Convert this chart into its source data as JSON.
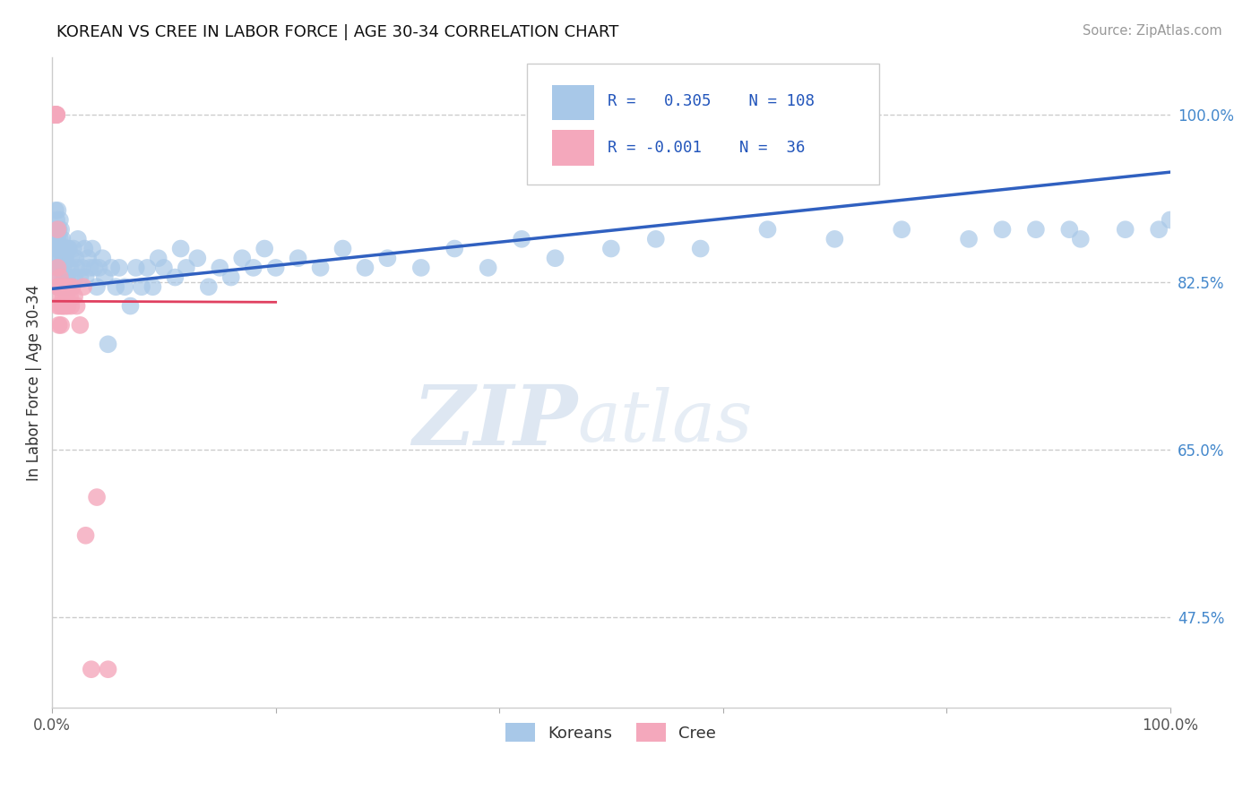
{
  "title": "KOREAN VS CREE IN LABOR FORCE | AGE 30-34 CORRELATION CHART",
  "source": "Source: ZipAtlas.com",
  "ylabel": "In Labor Force | Age 30-34",
  "xlim": [
    0.0,
    1.0
  ],
  "ylim": [
    0.38,
    1.06
  ],
  "yticks": [
    0.475,
    0.65,
    0.825,
    1.0
  ],
  "ytick_labels": [
    "47.5%",
    "65.0%",
    "82.5%",
    "100.0%"
  ],
  "korean_R": 0.305,
  "korean_N": 108,
  "cree_R": -0.001,
  "cree_N": 36,
  "korean_color": "#a8c8e8",
  "cree_color": "#f4a8bc",
  "trend_korean_color": "#3060c0",
  "trend_cree_color": "#e04060",
  "legend_label_korean": "Koreans",
  "legend_label_cree": "Cree",
  "background_color": "#ffffff",
  "korean_trend_x0": 0.0,
  "korean_trend_y0": 0.818,
  "korean_trend_x1": 1.0,
  "korean_trend_y1": 0.94,
  "cree_trend_x0": 0.0,
  "cree_trend_y0": 0.805,
  "cree_trend_x1": 0.2,
  "cree_trend_y1": 0.804,
  "korean_x": [
    0.002,
    0.003,
    0.003,
    0.003,
    0.004,
    0.004,
    0.004,
    0.005,
    0.005,
    0.005,
    0.005,
    0.005,
    0.005,
    0.006,
    0.006,
    0.006,
    0.006,
    0.007,
    0.007,
    0.007,
    0.007,
    0.008,
    0.008,
    0.008,
    0.008,
    0.009,
    0.009,
    0.009,
    0.01,
    0.01,
    0.01,
    0.011,
    0.011,
    0.012,
    0.012,
    0.013,
    0.013,
    0.014,
    0.014,
    0.015,
    0.015,
    0.016,
    0.017,
    0.018,
    0.019,
    0.02,
    0.021,
    0.022,
    0.023,
    0.025,
    0.027,
    0.029,
    0.03,
    0.032,
    0.034,
    0.036,
    0.038,
    0.04,
    0.042,
    0.045,
    0.047,
    0.05,
    0.053,
    0.057,
    0.06,
    0.065,
    0.07,
    0.075,
    0.08,
    0.085,
    0.09,
    0.095,
    0.1,
    0.11,
    0.115,
    0.12,
    0.13,
    0.14,
    0.15,
    0.16,
    0.17,
    0.18,
    0.19,
    0.2,
    0.22,
    0.24,
    0.26,
    0.28,
    0.3,
    0.33,
    0.36,
    0.39,
    0.42,
    0.45,
    0.5,
    0.54,
    0.58,
    0.64,
    0.7,
    0.76,
    0.82,
    0.88,
    0.92,
    0.96,
    0.99,
    1.0,
    0.85,
    0.91
  ],
  "korean_y": [
    0.86,
    0.88,
    0.9,
    0.87,
    0.85,
    0.87,
    0.89,
    0.82,
    0.84,
    0.86,
    0.87,
    0.88,
    0.9,
    0.82,
    0.84,
    0.86,
    0.88,
    0.83,
    0.85,
    0.87,
    0.89,
    0.82,
    0.84,
    0.86,
    0.88,
    0.83,
    0.85,
    0.87,
    0.82,
    0.84,
    0.86,
    0.83,
    0.85,
    0.82,
    0.85,
    0.83,
    0.86,
    0.83,
    0.86,
    0.82,
    0.86,
    0.84,
    0.85,
    0.82,
    0.86,
    0.83,
    0.85,
    0.84,
    0.87,
    0.83,
    0.84,
    0.86,
    0.83,
    0.85,
    0.84,
    0.86,
    0.84,
    0.82,
    0.84,
    0.85,
    0.83,
    0.76,
    0.84,
    0.82,
    0.84,
    0.82,
    0.8,
    0.84,
    0.82,
    0.84,
    0.82,
    0.85,
    0.84,
    0.83,
    0.86,
    0.84,
    0.85,
    0.82,
    0.84,
    0.83,
    0.85,
    0.84,
    0.86,
    0.84,
    0.85,
    0.84,
    0.86,
    0.84,
    0.85,
    0.84,
    0.86,
    0.84,
    0.87,
    0.85,
    0.86,
    0.87,
    0.86,
    0.88,
    0.87,
    0.88,
    0.87,
    0.88,
    0.87,
    0.88,
    0.88,
    0.89,
    0.88,
    0.88
  ],
  "cree_x": [
    0.002,
    0.003,
    0.003,
    0.004,
    0.004,
    0.004,
    0.005,
    0.005,
    0.005,
    0.005,
    0.006,
    0.006,
    0.007,
    0.007,
    0.008,
    0.008,
    0.009,
    0.009,
    0.01,
    0.01,
    0.011,
    0.012,
    0.013,
    0.014,
    0.015,
    0.016,
    0.017,
    0.018,
    0.02,
    0.022,
    0.025,
    0.028,
    0.03,
    0.035,
    0.04,
    0.05
  ],
  "cree_y": [
    1.0,
    1.0,
    1.0,
    1.0,
    1.0,
    1.0,
    0.88,
    0.82,
    0.8,
    0.84,
    0.78,
    0.82,
    0.8,
    0.83,
    0.78,
    0.81,
    0.8,
    0.82,
    0.81,
    0.8,
    0.82,
    0.8,
    0.81,
    0.8,
    0.82,
    0.81,
    0.8,
    0.82,
    0.81,
    0.8,
    0.78,
    0.82,
    0.56,
    0.42,
    0.6,
    0.42
  ]
}
